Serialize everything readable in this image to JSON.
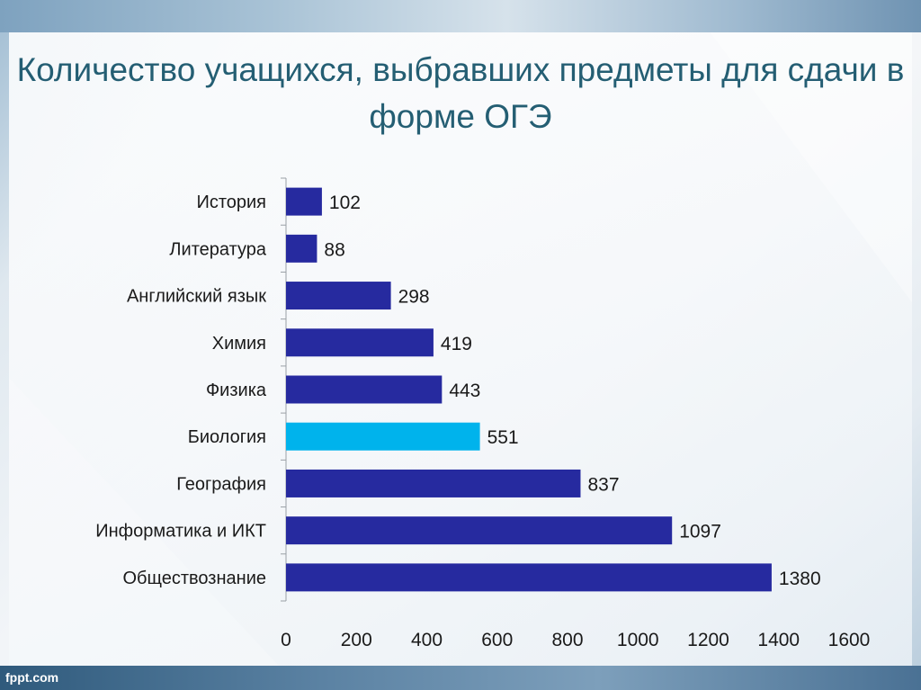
{
  "title": "Количество учащихся, выбравших предметы для сдачи в форме ОГЭ",
  "watermark": "fppt.com",
  "colors": {
    "bar": "#262a9f",
    "highlight": "#00b3ec",
    "title": "#245e73",
    "axis": "#9aa0a6",
    "text": "#1a1a1a"
  },
  "chart_data": {
    "type": "bar",
    "orientation": "horizontal",
    "title": "",
    "xlabel": "",
    "ylabel": "",
    "categories": [
      "История",
      "Литература",
      "Английский язык",
      "Химия",
      "Физика",
      "Биология",
      "География",
      "Информатика и ИКТ",
      "Обществознание"
    ],
    "values": [
      102,
      88,
      298,
      419,
      443,
      551,
      837,
      1097,
      1380
    ],
    "highlight_category": "Биология",
    "xlim": [
      0,
      1600
    ],
    "xticks": [
      0,
      200,
      400,
      600,
      800,
      1000,
      1200,
      1400,
      1600
    ],
    "grid": false,
    "legend": "none",
    "data_labels": true
  }
}
